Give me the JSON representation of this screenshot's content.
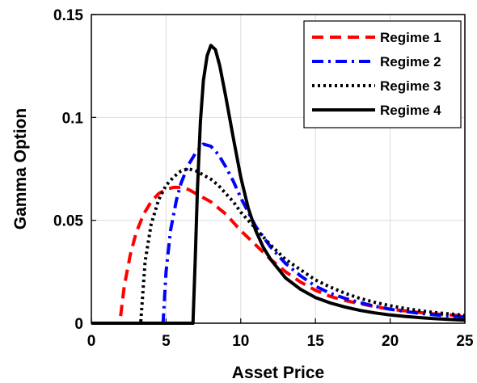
{
  "chart_data": {
    "type": "line",
    "xlabel": "Asset Price",
    "ylabel": "Gamma Option",
    "xlim": [
      0,
      25
    ],
    "ylim": [
      0,
      0.15
    ],
    "x_ticks": [
      0,
      5,
      10,
      15,
      20,
      25
    ],
    "y_ticks": [
      0,
      0.05,
      0.1,
      0.15
    ],
    "y_tick_labels": [
      "0",
      "0.05",
      "0.1",
      "0.15"
    ],
    "grid": true,
    "legend_position": "top-right",
    "series": [
      {
        "name": "Regime 1",
        "color": "#ff0000",
        "style": "dashed",
        "points": [
          [
            0,
            0
          ],
          [
            1.9,
            0
          ],
          [
            2.2,
            0.018
          ],
          [
            2.6,
            0.033
          ],
          [
            3.0,
            0.044
          ],
          [
            3.5,
            0.053
          ],
          [
            4.0,
            0.059
          ],
          [
            4.5,
            0.063
          ],
          [
            5.0,
            0.065
          ],
          [
            5.5,
            0.066
          ],
          [
            6.0,
            0.066
          ],
          [
            6.5,
            0.065
          ],
          [
            7.0,
            0.063
          ],
          [
            7.5,
            0.061
          ],
          [
            8.0,
            0.059
          ],
          [
            8.5,
            0.056
          ],
          [
            9.0,
            0.053
          ],
          [
            9.5,
            0.049
          ],
          [
            10.0,
            0.045
          ],
          [
            11.0,
            0.038
          ],
          [
            12.0,
            0.031
          ],
          [
            13.0,
            0.025
          ],
          [
            14.0,
            0.02
          ],
          [
            15.0,
            0.016
          ],
          [
            16.0,
            0.013
          ],
          [
            17.0,
            0.011
          ],
          [
            18.0,
            0.0095
          ],
          [
            19.0,
            0.008
          ],
          [
            20.0,
            0.0068
          ],
          [
            21.0,
            0.006
          ],
          [
            22.0,
            0.0052
          ],
          [
            23.0,
            0.0045
          ],
          [
            24.0,
            0.004
          ],
          [
            25.0,
            0.0035
          ]
        ]
      },
      {
        "name": "Regime 2",
        "color": "#0000ff",
        "style": "dashdot",
        "points": [
          [
            0,
            0
          ],
          [
            4.8,
            0
          ],
          [
            5.0,
            0.025
          ],
          [
            5.3,
            0.045
          ],
          [
            5.7,
            0.06
          ],
          [
            6.0,
            0.068
          ],
          [
            6.5,
            0.077
          ],
          [
            7.0,
            0.083
          ],
          [
            7.5,
            0.087
          ],
          [
            8.0,
            0.086
          ],
          [
            8.5,
            0.082
          ],
          [
            9.0,
            0.076
          ],
          [
            9.5,
            0.069
          ],
          [
            10.0,
            0.061
          ],
          [
            10.5,
            0.054
          ],
          [
            11.0,
            0.047
          ],
          [
            12.0,
            0.037
          ],
          [
            13.0,
            0.029
          ],
          [
            14.0,
            0.023
          ],
          [
            15.0,
            0.018
          ],
          [
            16.0,
            0.0145
          ],
          [
            17.0,
            0.012
          ],
          [
            18.0,
            0.01
          ],
          [
            19.0,
            0.0082
          ],
          [
            20.0,
            0.0068
          ],
          [
            21.0,
            0.0057
          ],
          [
            22.0,
            0.0048
          ],
          [
            23.0,
            0.0041
          ],
          [
            24.0,
            0.0035
          ],
          [
            25.0,
            0.003
          ]
        ]
      },
      {
        "name": "Regime 3",
        "color": "#000000",
        "style": "dotted",
        "points": [
          [
            0,
            0
          ],
          [
            3.3,
            0
          ],
          [
            3.6,
            0.03
          ],
          [
            4.0,
            0.048
          ],
          [
            4.5,
            0.06
          ],
          [
            5.0,
            0.067
          ],
          [
            5.5,
            0.071
          ],
          [
            6.0,
            0.074
          ],
          [
            6.5,
            0.075
          ],
          [
            7.0,
            0.074
          ],
          [
            7.5,
            0.072
          ],
          [
            8.0,
            0.07
          ],
          [
            8.5,
            0.067
          ],
          [
            9.0,
            0.063
          ],
          [
            9.5,
            0.059
          ],
          [
            10.0,
            0.054
          ],
          [
            11.0,
            0.046
          ],
          [
            12.0,
            0.038
          ],
          [
            13.0,
            0.031
          ],
          [
            14.0,
            0.026
          ],
          [
            15.0,
            0.021
          ],
          [
            16.0,
            0.0175
          ],
          [
            17.0,
            0.0145
          ],
          [
            18.0,
            0.012
          ],
          [
            19.0,
            0.0101
          ],
          [
            20.0,
            0.0085
          ],
          [
            21.0,
            0.0072
          ],
          [
            22.0,
            0.0061
          ],
          [
            23.0,
            0.0052
          ],
          [
            24.0,
            0.0045
          ],
          [
            25.0,
            0.0038
          ]
        ]
      },
      {
        "name": "Regime 4",
        "color": "#000000",
        "style": "solid",
        "points": [
          [
            0,
            0
          ],
          [
            6.8,
            0
          ],
          [
            6.95,
            0.03
          ],
          [
            7.1,
            0.065
          ],
          [
            7.3,
            0.098
          ],
          [
            7.5,
            0.118
          ],
          [
            7.75,
            0.13
          ],
          [
            8.0,
            0.135
          ],
          [
            8.3,
            0.133
          ],
          [
            8.6,
            0.125
          ],
          [
            9.0,
            0.11
          ],
          [
            9.5,
            0.09
          ],
          [
            10.0,
            0.071
          ],
          [
            10.5,
            0.056
          ],
          [
            11.0,
            0.045
          ],
          [
            11.5,
            0.037
          ],
          [
            12.0,
            0.031
          ],
          [
            13.0,
            0.022
          ],
          [
            14.0,
            0.0165
          ],
          [
            15.0,
            0.0125
          ],
          [
            16.0,
            0.0098
          ],
          [
            17.0,
            0.0078
          ],
          [
            18.0,
            0.0062
          ],
          [
            19.0,
            0.005
          ],
          [
            20.0,
            0.004
          ],
          [
            21.0,
            0.0033
          ],
          [
            22.0,
            0.0027
          ],
          [
            23.0,
            0.0022
          ],
          [
            24.0,
            0.0018
          ],
          [
            25.0,
            0.0015
          ]
        ]
      }
    ]
  }
}
